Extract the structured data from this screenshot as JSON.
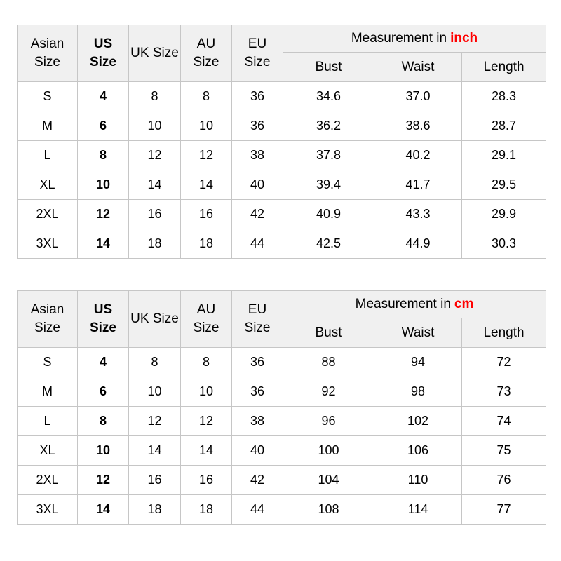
{
  "colors": {
    "unit_red": "#ff0000",
    "header_bg": "#f0f0f0",
    "border": "#c6c6c6"
  },
  "tables": [
    {
      "header": {
        "asian": "Asian Size",
        "us": "US Size",
        "uk": "UK Size",
        "au": "AU Size",
        "eu": "EU Size",
        "measurement_prefix": "Measurement in",
        "measurement_unit": "inch",
        "sub": [
          "Bust",
          "Waist",
          "Length"
        ]
      },
      "rows": [
        {
          "asian": "S",
          "us": "4",
          "uk": "8",
          "au": "8",
          "eu": "36",
          "bust": "34.6",
          "waist": "37.0",
          "length": "28.3"
        },
        {
          "asian": "M",
          "us": "6",
          "uk": "10",
          "au": "10",
          "eu": "36",
          "bust": "36.2",
          "waist": "38.6",
          "length": "28.7"
        },
        {
          "asian": "L",
          "us": "8",
          "uk": "12",
          "au": "12",
          "eu": "38",
          "bust": "37.8",
          "waist": "40.2",
          "length": "29.1"
        },
        {
          "asian": "XL",
          "us": "10",
          "uk": "14",
          "au": "14",
          "eu": "40",
          "bust": "39.4",
          "waist": "41.7",
          "length": "29.5"
        },
        {
          "asian": "2XL",
          "us": "12",
          "uk": "16",
          "au": "16",
          "eu": "42",
          "bust": "40.9",
          "waist": "43.3",
          "length": "29.9"
        },
        {
          "asian": "3XL",
          "us": "14",
          "uk": "18",
          "au": "18",
          "eu": "44",
          "bust": "42.5",
          "waist": "44.9",
          "length": "30.3"
        }
      ]
    },
    {
      "header": {
        "asian": "Asian Size",
        "us": "US Size",
        "uk": "UK Size",
        "au": "AU Size",
        "eu": "EU Size",
        "measurement_prefix": "Measurement in",
        "measurement_unit": "cm",
        "sub": [
          "Bust",
          "Waist",
          "Length"
        ]
      },
      "rows": [
        {
          "asian": "S",
          "us": "4",
          "uk": "8",
          "au": "8",
          "eu": "36",
          "bust": "88",
          "waist": "94",
          "length": "72"
        },
        {
          "asian": "M",
          "us": "6",
          "uk": "10",
          "au": "10",
          "eu": "36",
          "bust": "92",
          "waist": "98",
          "length": "73"
        },
        {
          "asian": "L",
          "us": "8",
          "uk": "12",
          "au": "12",
          "eu": "38",
          "bust": "96",
          "waist": "102",
          "length": "74"
        },
        {
          "asian": "XL",
          "us": "10",
          "uk": "14",
          "au": "14",
          "eu": "40",
          "bust": "100",
          "waist": "106",
          "length": "75"
        },
        {
          "asian": "2XL",
          "us": "12",
          "uk": "16",
          "au": "16",
          "eu": "42",
          "bust": "104",
          "waist": "110",
          "length": "76"
        },
        {
          "asian": "3XL",
          "us": "14",
          "uk": "18",
          "au": "18",
          "eu": "44",
          "bust": "108",
          "waist": "114",
          "length": "77"
        }
      ]
    }
  ],
  "chart_data": [
    {
      "type": "table",
      "title": "Measurement in inch",
      "columns": [
        "Asian Size",
        "US Size",
        "UK Size",
        "AU Size",
        "EU Size",
        "Bust",
        "Waist",
        "Length"
      ],
      "rows": [
        [
          "S",
          4,
          8,
          8,
          36,
          34.6,
          37.0,
          28.3
        ],
        [
          "M",
          6,
          10,
          10,
          36,
          36.2,
          38.6,
          28.7
        ],
        [
          "L",
          8,
          12,
          12,
          38,
          37.8,
          40.2,
          29.1
        ],
        [
          "XL",
          10,
          14,
          14,
          40,
          39.4,
          41.7,
          29.5
        ],
        [
          "2XL",
          12,
          16,
          16,
          42,
          40.9,
          43.3,
          29.9
        ],
        [
          "3XL",
          14,
          18,
          18,
          44,
          42.5,
          44.9,
          30.3
        ]
      ]
    },
    {
      "type": "table",
      "title": "Measurement in cm",
      "columns": [
        "Asian Size",
        "US Size",
        "UK Size",
        "AU Size",
        "EU Size",
        "Bust",
        "Waist",
        "Length"
      ],
      "rows": [
        [
          "S",
          4,
          8,
          8,
          36,
          88,
          94,
          72
        ],
        [
          "M",
          6,
          10,
          10,
          36,
          92,
          98,
          73
        ],
        [
          "L",
          8,
          12,
          12,
          38,
          96,
          102,
          74
        ],
        [
          "XL",
          10,
          14,
          14,
          40,
          100,
          106,
          75
        ],
        [
          "2XL",
          12,
          16,
          16,
          42,
          104,
          110,
          76
        ],
        [
          "3XL",
          14,
          18,
          18,
          44,
          108,
          114,
          77
        ]
      ]
    }
  ]
}
